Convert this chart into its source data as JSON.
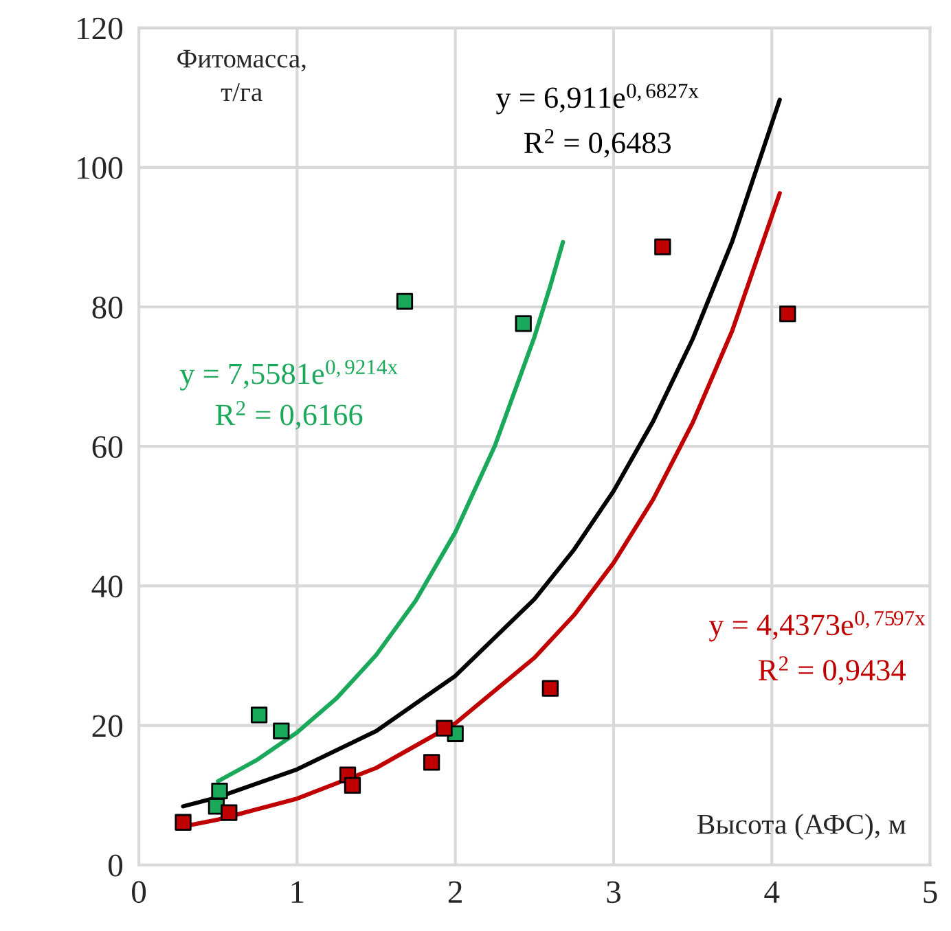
{
  "chart_data": {
    "type": "scatter",
    "xlabel": "Высота (АФС), м",
    "ylabel": "Фитомасса,\nт/га",
    "xlim": [
      0,
      5
    ],
    "ylim": [
      0,
      120
    ],
    "xticks": [
      0,
      1,
      2,
      3,
      4,
      5
    ],
    "yticks": [
      0,
      20,
      40,
      60,
      80,
      100,
      120
    ],
    "grid": true,
    "series": [
      {
        "marker": "square",
        "color": "#1aa85a",
        "x": [
          0.49,
          0.51,
          0.76,
          0.9,
          1.68,
          2.0,
          2.43
        ],
        "values": [
          8.4,
          10.6,
          21.5,
          19.2,
          80.8,
          18.8,
          77.6
        ]
      },
      {
        "marker": "square",
        "color": "#c00000",
        "x": [
          0.28,
          0.57,
          1.32,
          1.35,
          1.85,
          1.93,
          2.6,
          3.31,
          4.1
        ],
        "values": [
          6.1,
          7.5,
          12.9,
          11.4,
          14.7,
          19.6,
          25.3,
          88.6,
          79.0
        ]
      },
      {
        "type": "line",
        "color": "#1aa85a",
        "x": [
          0.5,
          0.75,
          1.0,
          1.25,
          1.5,
          1.75,
          2.0,
          2.25,
          2.5,
          2.6,
          2.68
        ],
        "values": [
          12.0,
          15.1,
          19.0,
          23.9,
          30.1,
          37.9,
          47.7,
          60.1,
          75.7,
          83.0,
          89.3
        ]
      },
      {
        "type": "line",
        "color": "#000000",
        "x": [
          0.28,
          0.5,
          1.0,
          1.5,
          2.0,
          2.5,
          2.75,
          3.0,
          3.25,
          3.5,
          3.75,
          4.05
        ],
        "values": [
          8.4,
          9.7,
          13.7,
          19.2,
          27.1,
          38.1,
          45.2,
          53.6,
          63.6,
          75.4,
          89.4,
          109.7
        ]
      },
      {
        "type": "line",
        "color": "#c00000",
        "x": [
          0.28,
          0.5,
          1.0,
          1.5,
          2.0,
          2.5,
          2.75,
          3.0,
          3.25,
          3.5,
          3.75,
          4.05
        ],
        "values": [
          5.5,
          6.5,
          9.5,
          13.9,
          20.3,
          29.7,
          35.8,
          43.3,
          52.4,
          63.4,
          76.6,
          96.3
        ]
      }
    ],
    "annotations": [
      "y = 7,5581e$^{0,9214x}$",
      "R$^{2}$ = 0,6166",
      "y = 6,911e$^{0,6827x}$",
      "R$^{2}$ = 0,6483",
      "y = 4,4373e$^{0,7597x}$",
      "R$^{2}$ = 0,9434"
    ]
  }
}
